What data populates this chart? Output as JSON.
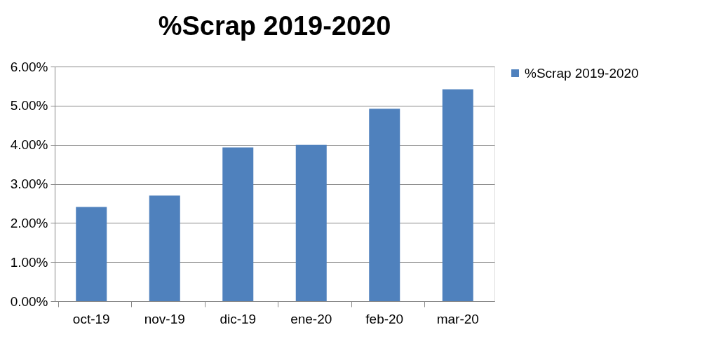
{
  "chart_data": {
    "type": "bar",
    "title": "%Scrap 2019-2020",
    "categories": [
      "oct-19",
      "nov-19",
      "dic-19",
      "ene-20",
      "feb-20",
      "mar-20"
    ],
    "series": [
      {
        "name": "%Scrap 2019-2020",
        "color": "#4f81bd",
        "values": [
          2.41,
          2.7,
          3.93,
          4.0,
          4.92,
          5.42
        ]
      }
    ],
    "ylim": [
      0,
      6
    ],
    "yticks": [
      {
        "value": 0,
        "label": "0.00%"
      },
      {
        "value": 1,
        "label": "1.00%"
      },
      {
        "value": 2,
        "label": "2.00%"
      },
      {
        "value": 3,
        "label": "3.00%"
      },
      {
        "value": 4,
        "label": "4.00%"
      },
      {
        "value": 5,
        "label": "5.00%"
      },
      {
        "value": 6,
        "label": "6.00%"
      }
    ],
    "grid": "y",
    "legend": "right"
  }
}
